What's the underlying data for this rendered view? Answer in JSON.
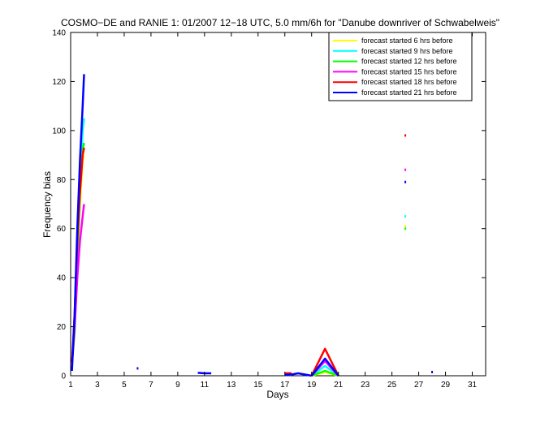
{
  "chart_data": {
    "type": "line",
    "title": "COSMO−DE and RANIE 1: 01/2007 12−18 UTC, 5.0 mm/6h for \"Danube downriver of Schwabelweis\"",
    "xlabel": "Days",
    "ylabel": "Frequency bias",
    "xlim": [
      1,
      32
    ],
    "ylim": [
      0,
      140
    ],
    "xticks": [
      1,
      3,
      5,
      7,
      9,
      11,
      13,
      15,
      17,
      19,
      21,
      23,
      25,
      27,
      29,
      31
    ],
    "yticks": [
      0,
      20,
      40,
      60,
      80,
      100,
      120,
      140
    ],
    "grid": false,
    "legend_position": "top-right",
    "series": [
      {
        "name": "forecast started 6 hrs before",
        "color": "#ffff00",
        "segments": [
          [
            [
              1.1,
              5
            ],
            [
              1.3,
              18
            ],
            [
              1.5,
              45
            ],
            [
              1.7,
              70
            ],
            [
              1.9,
              88
            ],
            [
              2.0,
              90
            ]
          ],
          [
            [
              17,
              0.4
            ],
            [
              17.5,
              0.4
            ]
          ],
          [
            [
              19,
              0
            ],
            [
              20,
              1.5
            ],
            [
              21,
              0
            ]
          ]
        ],
        "points": [
          [
            26,
            61
          ]
        ]
      },
      {
        "name": "forecast started 9 hrs before",
        "color": "#00ffff",
        "segments": [
          [
            [
              1.1,
              5
            ],
            [
              1.3,
              20
            ],
            [
              1.5,
              50
            ],
            [
              1.7,
              80
            ],
            [
              1.9,
              100
            ],
            [
              2.0,
              105
            ]
          ],
          [
            [
              17,
              1
            ],
            [
              17.5,
              1
            ]
          ],
          [
            [
              19,
              0
            ],
            [
              20,
              4
            ],
            [
              21,
              0
            ]
          ]
        ],
        "points": [
          [
            26,
            65
          ]
        ]
      },
      {
        "name": "forecast started 12 hrs before",
        "color": "#00ff00",
        "segments": [
          [
            [
              1.1,
              5
            ],
            [
              1.3,
              18
            ],
            [
              1.5,
              48
            ],
            [
              1.7,
              75
            ],
            [
              1.9,
              92
            ],
            [
              2.0,
              95
            ]
          ],
          [
            [
              17,
              0.5
            ],
            [
              17.5,
              0.5
            ]
          ],
          [
            [
              19,
              0
            ],
            [
              20,
              2
            ],
            [
              21,
              0
            ]
          ]
        ],
        "points": [
          [
            26,
            60
          ]
        ]
      },
      {
        "name": "forecast started 15 hrs before",
        "color": "#ff00ff",
        "segments": [
          [
            [
              1.1,
              5
            ],
            [
              1.3,
              20
            ],
            [
              1.5,
              40
            ],
            [
              1.7,
              55
            ],
            [
              1.9,
              65
            ],
            [
              2.0,
              70
            ]
          ],
          [
            [
              17,
              0.8
            ],
            [
              17.5,
              0.8
            ]
          ],
          [
            [
              19,
              0
            ],
            [
              20,
              6
            ],
            [
              21,
              0
            ]
          ]
        ],
        "points": [
          [
            26,
            84
          ]
        ]
      },
      {
        "name": "forecast started 18 hrs before",
        "color": "#ff0000",
        "segments": [
          [
            [
              1.1,
              5
            ],
            [
              1.3,
              25
            ],
            [
              1.5,
              55
            ],
            [
              1.7,
              75
            ],
            [
              1.9,
              90
            ],
            [
              2.0,
              93
            ]
          ],
          [
            [
              17,
              1
            ],
            [
              17.5,
              1
            ]
          ],
          [
            [
              19,
              0
            ],
            [
              20,
              11
            ],
            [
              21,
              0
            ]
          ]
        ],
        "points": [
          [
            26,
            98
          ]
        ]
      },
      {
        "name": "forecast started 21 hrs before",
        "color": "#0000ff",
        "segments": [
          [
            [
              1.1,
              2
            ],
            [
              1.3,
              25
            ],
            [
              1.5,
              60
            ],
            [
              1.7,
              88
            ],
            [
              1.9,
              110
            ],
            [
              2.0,
              123
            ]
          ],
          [
            [
              10.5,
              1.2
            ],
            [
              11,
              1
            ],
            [
              11.5,
              1
            ]
          ],
          [
            [
              17,
              0.3
            ],
            [
              17.5,
              0.5
            ],
            [
              18,
              1
            ],
            [
              19,
              0
            ]
          ],
          [
            [
              19,
              0
            ],
            [
              20,
              7
            ],
            [
              21,
              0
            ]
          ]
        ],
        "points": [
          [
            6,
            3
          ],
          [
            26,
            79
          ],
          [
            28,
            1.5
          ]
        ]
      }
    ]
  }
}
